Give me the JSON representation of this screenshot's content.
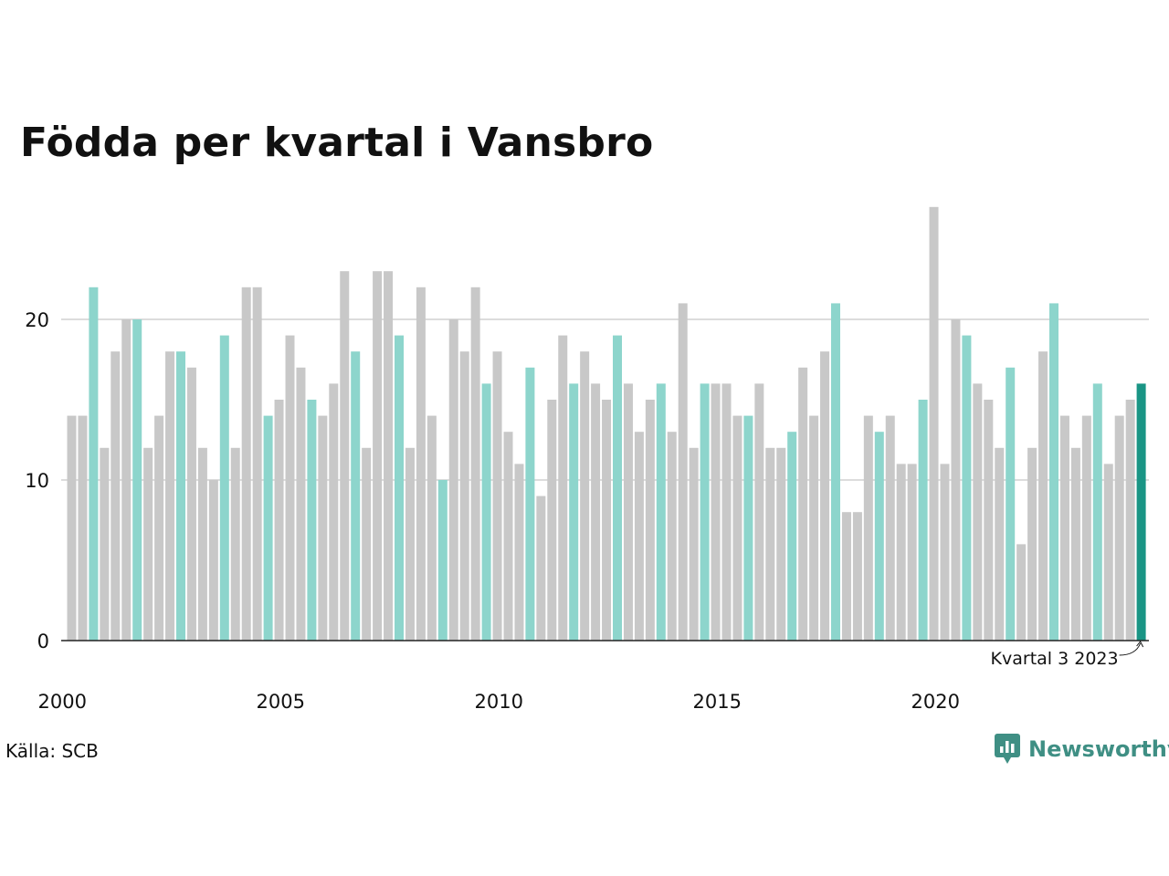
{
  "title": "Födda per kvartal i Vansbro",
  "source": "Källa: SCB",
  "brand": "Newsworthy",
  "colors": {
    "other": "#c8c8c8",
    "same_quarter": "#8dd5cc",
    "latest": "#1a9585",
    "grid": "#dcdcdc",
    "axis": "#222222",
    "brand": "#3f8f84"
  },
  "chart_data": {
    "type": "bar",
    "title": "Födda per kvartal i Vansbro",
    "xlabel": "",
    "ylabel": "",
    "ylim": [
      0,
      27
    ],
    "yticks": [
      0,
      10,
      20
    ],
    "xticks": [
      "2000",
      "2005",
      "2010",
      "2015",
      "2020"
    ],
    "start_year": 2000,
    "highlight_quarter": 3,
    "grid": "horizontal",
    "annotation": "Kvartal 3 2023",
    "values": [
      14,
      14,
      22,
      12,
      18,
      20,
      20,
      12,
      14,
      18,
      18,
      17,
      12,
      10,
      19,
      12,
      22,
      22,
      14,
      15,
      19,
      17,
      15,
      14,
      16,
      23,
      18,
      12,
      23,
      23,
      19,
      12,
      22,
      14,
      10,
      20,
      18,
      22,
      16,
      18,
      13,
      11,
      17,
      9,
      15,
      19,
      16,
      18,
      16,
      15,
      19,
      16,
      13,
      15,
      16,
      13,
      21,
      12,
      16,
      16,
      16,
      14,
      14,
      16,
      12,
      12,
      13,
      17,
      14,
      18,
      21,
      8,
      8,
      14,
      13,
      14,
      11,
      11,
      15,
      27,
      11,
      20,
      19,
      16,
      15,
      12,
      17,
      6,
      12,
      18,
      21,
      14,
      12,
      14,
      16,
      11,
      14,
      15,
      16
    ]
  }
}
